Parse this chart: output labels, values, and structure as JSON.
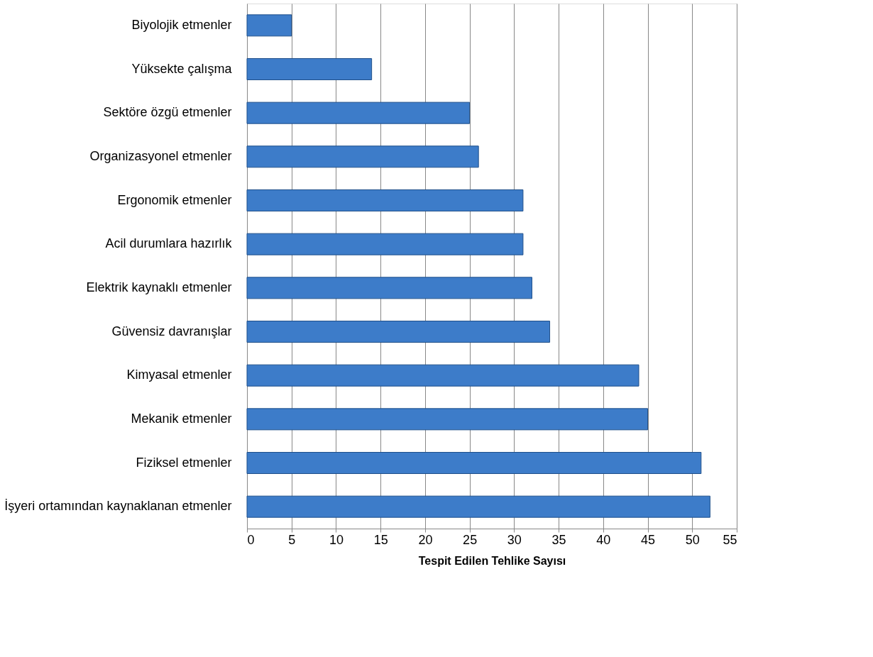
{
  "chart_data": {
    "type": "bar",
    "orientation": "horizontal",
    "xlabel": "Tespit Edilen Tehlike Sayısı",
    "categories": [
      "Biyolojik etmenler",
      "Yüksekte çalışma",
      "Sektöre özgü etmenler",
      "Organizasyonel etmenler",
      "Ergonomik etmenler",
      "Acil durumlara hazırlık",
      "Elektrik kaynaklı etmenler",
      "Güvensiz davranışlar",
      "Kimyasal etmenler",
      "Mekanik etmenler",
      "Fiziksel etmenler",
      "İşyeri ortamından kaynaklanan etmenler"
    ],
    "values": [
      5,
      14,
      25,
      26,
      31,
      31,
      32,
      34,
      44,
      45,
      51,
      52
    ],
    "color": "#3d7cc9",
    "xlim": [
      0,
      55
    ],
    "xticks": [
      0,
      5,
      10,
      15,
      20,
      25,
      30,
      35,
      40,
      45,
      50,
      55
    ],
    "grid": "x"
  }
}
